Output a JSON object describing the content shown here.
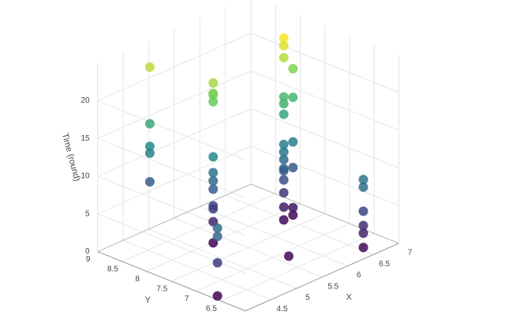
{
  "chart_data": {
    "type": "scatter3d",
    "xlabel": "X",
    "ylabel": "Y",
    "zlabel": "Time (round)",
    "x": [
      4.83,
      4.83,
      4.83,
      4.83,
      4.83,
      5.23,
      5.23,
      5.23,
      5.23,
      5.23,
      5.23,
      5.23,
      5.23,
      5.23,
      5.23,
      5.23,
      5.23,
      4.05,
      4.05,
      4.05,
      4.05,
      6.35,
      6.35,
      6.35,
      6.53,
      6.35,
      6.35,
      6.53,
      6.35,
      6.35,
      6.53,
      6.35,
      6.35,
      6.35,
      6.35,
      6.53,
      6.35,
      6.35,
      6.35,
      6.53,
      6.53,
      6.35,
      5.57,
      6.45,
      6.45,
      6.45,
      6.45,
      6.45,
      6.45
    ],
    "y": [
      8.8,
      8.8,
      8.8,
      8.8,
      8.8,
      7.93,
      7.93,
      7.93,
      7.93,
      7.93,
      7.93,
      7.93,
      7.93,
      7.93,
      7.93,
      7.93,
      7.93,
      6.62,
      6.62,
      6.62,
      6.62,
      7.66,
      7.66,
      7.66,
      7.66,
      7.66,
      7.66,
      7.66,
      7.66,
      7.66,
      7.66,
      7.66,
      7.66,
      7.66,
      7.66,
      7.66,
      7.66,
      7.66,
      7.66,
      7.66,
      7.66,
      7.66,
      6.75,
      6.15,
      6.15,
      6.15,
      6.15,
      6.15,
      6.15
    ],
    "z": [
      22.5,
      15.0,
      12.0,
      11.1,
      7.3,
      21.5,
      20.1,
      19.9,
      19.0,
      11.7,
      9.6,
      8.5,
      7.4,
      5.2,
      4.8,
      3.1,
      0.3,
      9.2,
      8.1,
      4.6,
      0.2,
      24.8,
      23.8,
      22.2,
      20.2,
      17.0,
      16.1,
      16.4,
      14.7,
      10.7,
      10.5,
      9.7,
      8.7,
      7.5,
      7.2,
      7.1,
      6.0,
      4.3,
      2.4,
      1.8,
      0.8,
      0.7,
      0.6,
      9.7,
      8.7,
      5.5,
      3.6,
      2.6,
      0.7
    ],
    "xlim": [
      4,
      7
    ],
    "ylim": [
      6,
      9
    ],
    "zlim": [
      0,
      25
    ],
    "xticks": [
      4.5,
      5,
      5.5,
      6,
      6.5,
      7
    ],
    "yticks": [
      6.5,
      7,
      7.5,
      8,
      8.5,
      9
    ],
    "zticks": [
      0,
      5,
      10,
      15,
      20
    ],
    "grid": true,
    "colorscale": [
      "#440154",
      "#3b528b",
      "#21918c",
      "#5ec962",
      "#fde725"
    ]
  }
}
